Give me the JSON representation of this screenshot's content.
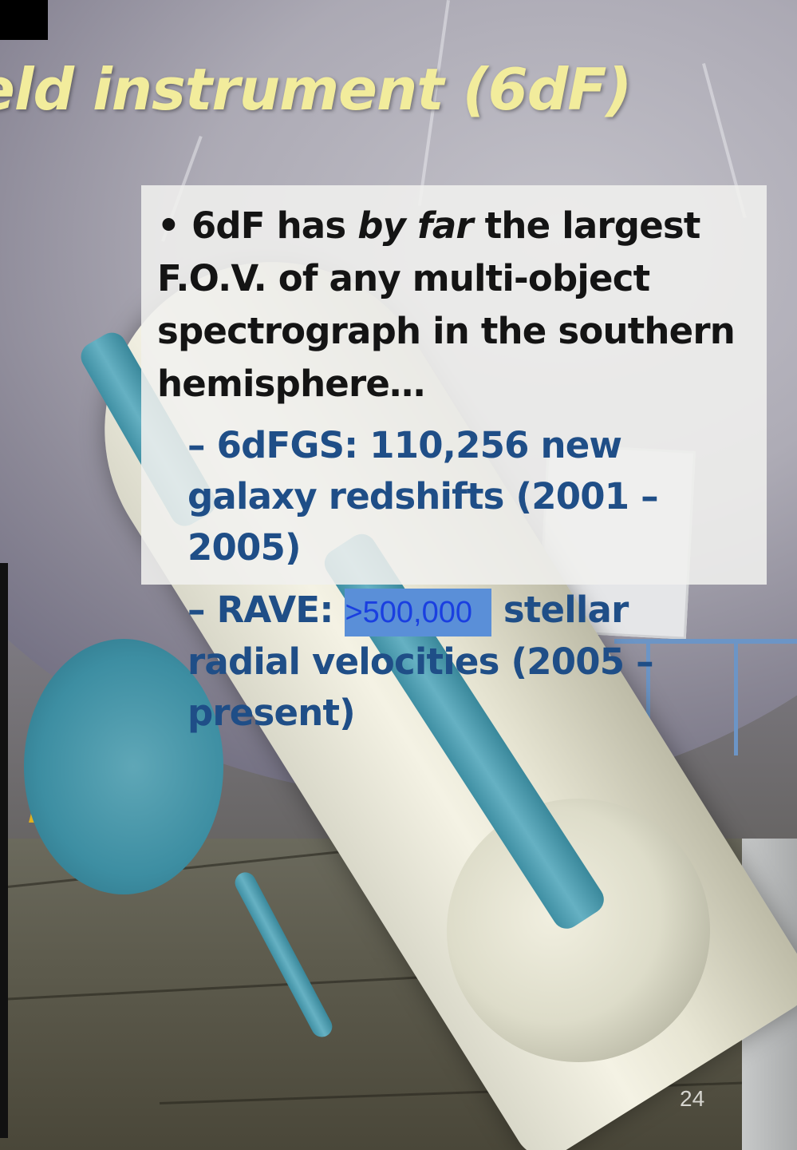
{
  "slide": {
    "title": "eld instrument (6dF)",
    "page_number": "24"
  },
  "textbox": {
    "bullet_symbol": "•",
    "main_pre": "6dF has ",
    "main_emphasis": "by far",
    "main_post": " the largest F.O.V. of any multi-object spectrograph in the southern hemisphere…",
    "sub_items": [
      {
        "dash": "–",
        "text": "6dFGS: 110,256 new galaxy redshifts (2001 – 2005)"
      },
      {
        "dash": "–",
        "prefix": "RAVE: ",
        "highlight": ">500,000",
        "suffix": " stellar radial velocities (2005 – present)"
      }
    ]
  },
  "colors": {
    "title": "#f2ec9c",
    "main_text": "#141414",
    "sub_text": "#1f4e87",
    "highlight_bg": "#5a8fd8",
    "highlight_text": "#1a3fe0"
  }
}
